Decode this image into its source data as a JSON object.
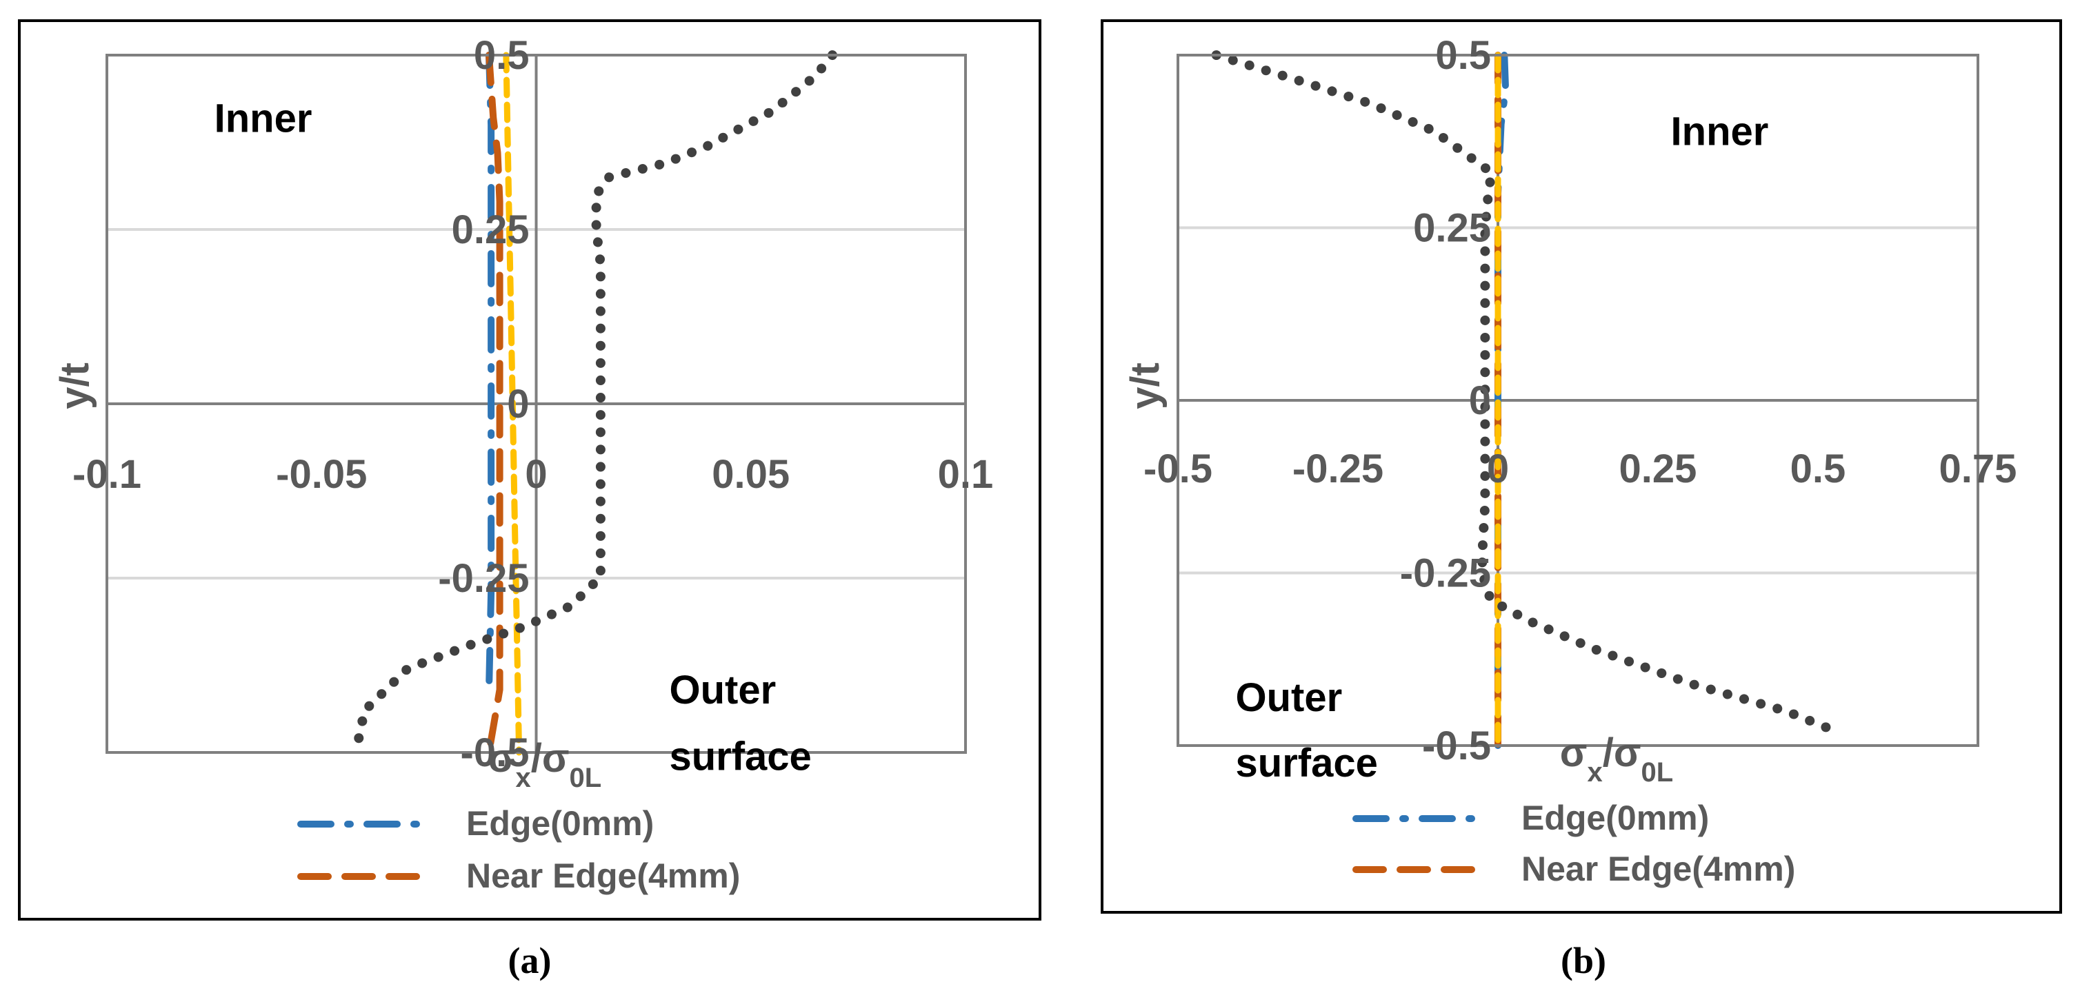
{
  "chart_data": [
    {
      "panel": "a",
      "caption": "(a)",
      "type": "line",
      "xlabel": "σx/σ0L",
      "ylabel": "y/t",
      "xlim": [
        -0.1,
        0.1
      ],
      "ylim": [
        -0.5,
        0.5
      ],
      "x_ticks": [
        -0.1,
        -0.05,
        0,
        0.05,
        0.1
      ],
      "x_tick_labels": [
        "-0.1",
        "-0.05",
        "0",
        "0.05",
        "0.1"
      ],
      "y_ticks": [
        -0.5,
        -0.25,
        0,
        0.25,
        0.5
      ],
      "y_tick_labels": [
        "-0.5",
        "-0.25",
        "0",
        "0.25",
        "0.5"
      ],
      "grid": true,
      "annotations": [
        {
          "text": "Inner",
          "x": -0.075,
          "y": 0.39
        },
        {
          "text": "Outer",
          "x": 0.031,
          "y": -0.43
        },
        {
          "text": "surface",
          "x": 0.031,
          "y": -0.525
        }
      ],
      "legend": [
        {
          "label": "Edge(0mm)",
          "color": "#2e75b6",
          "style": "dash-dot"
        },
        {
          "label": "Near Edge(4mm)",
          "color": "#c55a11",
          "style": "long-dash"
        }
      ],
      "series": [
        {
          "name": "Edge(0mm)",
          "color": "#2e75b6",
          "style": "dash-dot",
          "shown_in_legend": true,
          "x": [
            -0.011,
            -0.0105,
            -0.0105,
            -0.0105,
            -0.0105,
            -0.0105,
            -0.0105,
            -0.0105,
            -0.0105,
            -0.0105,
            -0.011
          ],
          "y": [
            0.5,
            0.4,
            0.35,
            0.29,
            0.22,
            0.13,
            0.07,
            -0.05,
            -0.19,
            -0.27,
            -0.41
          ]
        },
        {
          "name": "Near Edge(4mm)",
          "color": "#c55a11",
          "style": "long-dash",
          "shown_in_legend": true,
          "x": [
            -0.011,
            -0.01,
            -0.009,
            -0.0085,
            -0.0085,
            -0.0085,
            -0.0085,
            -0.0085,
            -0.0085,
            -0.0085,
            -0.0085,
            -0.011
          ],
          "y": [
            0.5,
            0.41,
            0.36,
            0.29,
            0.2,
            0.1,
            0.0,
            -0.1,
            -0.2,
            -0.3,
            -0.41,
            -0.5
          ]
        },
        {
          "name": "",
          "color": "#ffc000",
          "style": "dash",
          "shown_in_legend": false,
          "x": [
            -0.007,
            -0.0065,
            -0.006,
            -0.0055,
            -0.005,
            -0.0045,
            -0.004
          ],
          "y": [
            0.5,
            0.33,
            0.17,
            0.0,
            -0.17,
            -0.33,
            -0.5
          ]
        },
        {
          "name": "",
          "color": "#404040",
          "style": "dot",
          "shown_in_legend": false,
          "x": [
            0.069,
            0.065,
            0.055,
            0.04,
            0.03,
            0.017,
            0.014,
            0.014,
            0.015,
            0.015,
            0.015,
            0.015,
            0.015,
            0.015,
            0.015,
            0.013,
            0.008,
            -0.003,
            -0.015,
            -0.03,
            -0.04,
            -0.042
          ],
          "y": [
            0.5,
            0.47,
            0.42,
            0.37,
            0.345,
            0.325,
            0.3,
            0.25,
            0.2,
            0.1,
            0.0,
            -0.1,
            -0.15,
            -0.2,
            -0.25,
            -0.26,
            -0.29,
            -0.32,
            -0.345,
            -0.38,
            -0.44,
            -0.5
          ]
        }
      ]
    },
    {
      "panel": "b",
      "caption": "(b)",
      "type": "line",
      "xlabel": "σx/σ0L",
      "ylabel": "y/t",
      "xlim": [
        -0.5,
        0.75
      ],
      "ylim": [
        -0.5,
        0.5
      ],
      "x_ticks": [
        -0.5,
        -0.25,
        0,
        0.25,
        0.5,
        0.75
      ],
      "x_tick_labels": [
        "-0.5",
        "-0.25",
        "0",
        "0.25",
        "0.5",
        "0.75"
      ],
      "y_ticks": [
        -0.5,
        -0.25,
        0,
        0.25,
        0.5
      ],
      "y_tick_labels": [
        "-0.5",
        "-0.25",
        "0",
        "0.25",
        "0.5"
      ],
      "grid": true,
      "annotations": [
        {
          "text": "Inner",
          "x": 0.27,
          "y": 0.37
        },
        {
          "text": "Outer",
          "x": -0.41,
          "y": -0.45
        },
        {
          "text": "surface",
          "x": -0.41,
          "y": -0.545
        }
      ],
      "legend": [
        {
          "label": "Edge(0mm)",
          "color": "#2e75b6",
          "style": "dash-dot"
        },
        {
          "label": "Near Edge(4mm)",
          "color": "#c55a11",
          "style": "long-dash"
        }
      ],
      "series": [
        {
          "name": "Edge(0mm)",
          "color": "#2e75b6",
          "style": "dash-dot",
          "shown_in_legend": true,
          "x": [
            0.01,
            0.012,
            0.005,
            0.0,
            0.0,
            0.0,
            0.0,
            0.0,
            0.0
          ],
          "y": [
            0.5,
            0.45,
            0.4,
            0.3,
            0.1,
            -0.1,
            -0.3,
            -0.43,
            -0.5
          ]
        },
        {
          "name": "Near Edge(4mm)",
          "color": "#c55a11",
          "style": "long-dash",
          "shown_in_legend": true,
          "x": [
            0.0,
            0.0,
            0.0,
            0.0,
            0.0,
            0.0,
            0.0
          ],
          "y": [
            0.5,
            0.3,
            0.1,
            0.0,
            -0.1,
            -0.3,
            -0.5
          ]
        },
        {
          "name": "",
          "color": "#ffc000",
          "style": "dash",
          "shown_in_legend": false,
          "x": [
            0.0,
            0.0,
            0.0,
            0.0,
            0.0
          ],
          "y": [
            0.5,
            0.25,
            0.0,
            -0.25,
            -0.5
          ]
        },
        {
          "name": "",
          "color": "#404040",
          "style": "dot",
          "shown_in_legend": false,
          "x": [
            -0.44,
            -0.3,
            -0.2,
            -0.1,
            -0.04,
            -0.01,
            -0.015,
            -0.02,
            -0.02,
            -0.02,
            -0.02,
            -0.02,
            -0.02,
            -0.025,
            -0.02,
            -0.01,
            0.05,
            0.15,
            0.3,
            0.45,
            0.53
          ],
          "y": [
            0.5,
            0.46,
            0.43,
            0.39,
            0.35,
            0.33,
            0.3,
            0.25,
            0.15,
            0.05,
            0.0,
            -0.05,
            -0.15,
            -0.23,
            -0.27,
            -0.29,
            -0.32,
            -0.36,
            -0.41,
            -0.45,
            -0.48
          ]
        }
      ]
    }
  ]
}
